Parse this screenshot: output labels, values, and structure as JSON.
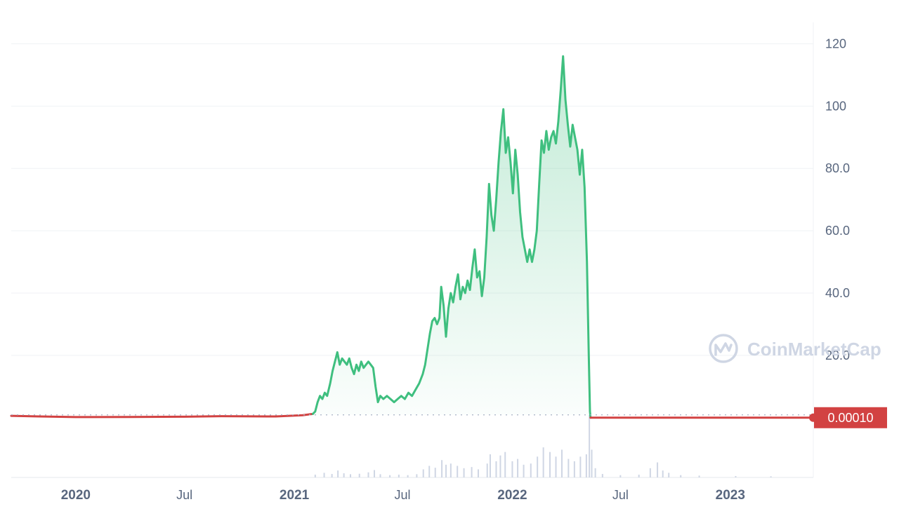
{
  "chart_data": {
    "type": "area",
    "y_ticks": [
      "20.0",
      "40.0",
      "60.0",
      "80.0",
      "100",
      "120"
    ],
    "ylim": [
      -5,
      130
    ],
    "x_ticks": [
      {
        "date": "2020-01-01",
        "label": "2020",
        "major": true
      },
      {
        "date": "2020-07-01",
        "label": "Jul",
        "major": false
      },
      {
        "date": "2021-01-01",
        "label": "2021",
        "major": true
      },
      {
        "date": "2021-07-01",
        "label": "Jul",
        "major": false
      },
      {
        "date": "2022-01-01",
        "label": "2022",
        "major": true
      },
      {
        "date": "2022-07-01",
        "label": "Jul",
        "major": false
      },
      {
        "date": "2023-01-01",
        "label": "2023",
        "major": true
      }
    ],
    "xlim": [
      "2019-09-15",
      "2023-05-20"
    ],
    "reference_price": 0.0001,
    "current_price_label": "0.00010",
    "colors": {
      "up": "#3fbf7f",
      "down": "#d24242",
      "fill_top": "#3fbf7f",
      "grid": "#eff2f5",
      "volume": "#cfd6e4"
    },
    "series": [
      {
        "direction": "down",
        "points": [
          [
            "2019-09-15",
            0.6
          ],
          [
            "2019-11-01",
            0.4
          ],
          [
            "2020-01-01",
            0.2
          ],
          [
            "2020-04-01",
            0.25
          ],
          [
            "2020-07-01",
            0.3
          ],
          [
            "2020-09-01",
            0.5
          ],
          [
            "2020-12-01",
            0.4
          ],
          [
            "2021-01-15",
            0.8
          ],
          [
            "2021-02-01",
            1.2
          ]
        ]
      },
      {
        "direction": "up",
        "points": [
          [
            "2021-02-01",
            1.2
          ],
          [
            "2021-02-05",
            2
          ],
          [
            "2021-02-09",
            5
          ],
          [
            "2021-02-13",
            7
          ],
          [
            "2021-02-17",
            6
          ],
          [
            "2021-02-21",
            8
          ],
          [
            "2021-02-25",
            7
          ],
          [
            "2021-03-02",
            11
          ],
          [
            "2021-03-06",
            15
          ],
          [
            "2021-03-10",
            18
          ],
          [
            "2021-03-14",
            21
          ],
          [
            "2021-03-18",
            17
          ],
          [
            "2021-03-22",
            19
          ],
          [
            "2021-03-26",
            18
          ],
          [
            "2021-03-30",
            17
          ],
          [
            "2021-04-03",
            19
          ],
          [
            "2021-04-07",
            16
          ],
          [
            "2021-04-11",
            14
          ],
          [
            "2021-04-15",
            17
          ],
          [
            "2021-04-19",
            15
          ],
          [
            "2021-04-23",
            18
          ],
          [
            "2021-04-27",
            16
          ],
          [
            "2021-05-01",
            17
          ],
          [
            "2021-05-05",
            18
          ],
          [
            "2021-05-09",
            17
          ],
          [
            "2021-05-13",
            16
          ],
          [
            "2021-05-17",
            10
          ],
          [
            "2021-05-21",
            5
          ],
          [
            "2021-05-25",
            7
          ],
          [
            "2021-05-30",
            6
          ],
          [
            "2021-06-05",
            7
          ],
          [
            "2021-06-11",
            6
          ],
          [
            "2021-06-17",
            5
          ],
          [
            "2021-06-23",
            6
          ],
          [
            "2021-06-29",
            7
          ],
          [
            "2021-07-05",
            6
          ],
          [
            "2021-07-11",
            8
          ],
          [
            "2021-07-17",
            7
          ],
          [
            "2021-07-23",
            9
          ],
          [
            "2021-07-29",
            11
          ],
          [
            "2021-08-04",
            14
          ],
          [
            "2021-08-08",
            17
          ],
          [
            "2021-08-12",
            22
          ],
          [
            "2021-08-16",
            27
          ],
          [
            "2021-08-20",
            31
          ],
          [
            "2021-08-24",
            32
          ],
          [
            "2021-08-28",
            30
          ],
          [
            "2021-09-01",
            32
          ],
          [
            "2021-09-04",
            42
          ],
          [
            "2021-09-08",
            36
          ],
          [
            "2021-09-12",
            26
          ],
          [
            "2021-09-16",
            35
          ],
          [
            "2021-09-20",
            40
          ],
          [
            "2021-09-24",
            37
          ],
          [
            "2021-09-28",
            42
          ],
          [
            "2021-10-02",
            46
          ],
          [
            "2021-10-06",
            38
          ],
          [
            "2021-10-10",
            42
          ],
          [
            "2021-10-14",
            40
          ],
          [
            "2021-10-18",
            44
          ],
          [
            "2021-10-22",
            41
          ],
          [
            "2021-10-26",
            48
          ],
          [
            "2021-10-30",
            54
          ],
          [
            "2021-11-03",
            45
          ],
          [
            "2021-11-07",
            47
          ],
          [
            "2021-11-11",
            39
          ],
          [
            "2021-11-15",
            45
          ],
          [
            "2021-11-19",
            58
          ],
          [
            "2021-11-23",
            75
          ],
          [
            "2021-11-27",
            65
          ],
          [
            "2021-12-01",
            60
          ],
          [
            "2021-12-05",
            70
          ],
          [
            "2021-12-09",
            82
          ],
          [
            "2021-12-13",
            92
          ],
          [
            "2021-12-17",
            99
          ],
          [
            "2021-12-21",
            85
          ],
          [
            "2021-12-25",
            90
          ],
          [
            "2021-12-29",
            82
          ],
          [
            "2022-01-02",
            72
          ],
          [
            "2022-01-06",
            86
          ],
          [
            "2022-01-10",
            78
          ],
          [
            "2022-01-14",
            66
          ],
          [
            "2022-01-18",
            58
          ],
          [
            "2022-01-22",
            54
          ],
          [
            "2022-01-26",
            50
          ],
          [
            "2022-01-30",
            54
          ],
          [
            "2022-02-03",
            50
          ],
          [
            "2022-02-07",
            54
          ],
          [
            "2022-02-11",
            60
          ],
          [
            "2022-02-15",
            75
          ],
          [
            "2022-02-19",
            89
          ],
          [
            "2022-02-23",
            85
          ],
          [
            "2022-02-27",
            92
          ],
          [
            "2022-03-03",
            86
          ],
          [
            "2022-03-07",
            90
          ],
          [
            "2022-03-11",
            92
          ],
          [
            "2022-03-15",
            88
          ],
          [
            "2022-03-19",
            95
          ],
          [
            "2022-03-23",
            105
          ],
          [
            "2022-03-27",
            116
          ],
          [
            "2022-03-31",
            102
          ],
          [
            "2022-04-04",
            94
          ],
          [
            "2022-04-08",
            87
          ],
          [
            "2022-04-12",
            94
          ],
          [
            "2022-04-16",
            90
          ],
          [
            "2022-04-20",
            86
          ],
          [
            "2022-04-24",
            78
          ],
          [
            "2022-04-28",
            86
          ],
          [
            "2022-05-02",
            74
          ],
          [
            "2022-05-06",
            50
          ],
          [
            "2022-05-09",
            20
          ],
          [
            "2022-05-11",
            2
          ],
          [
            "2022-05-12",
            0.0001
          ]
        ]
      },
      {
        "direction": "down",
        "points": [
          [
            "2022-05-12",
            0.0001
          ],
          [
            "2023-05-20",
            0.0001
          ]
        ]
      }
    ],
    "volume": [
      [
        "2021-02-05",
        1.2
      ],
      [
        "2021-02-20",
        2.0
      ],
      [
        "2021-03-05",
        1.5
      ],
      [
        "2021-03-15",
        3.0
      ],
      [
        "2021-03-25",
        1.8
      ],
      [
        "2021-04-05",
        1.4
      ],
      [
        "2021-04-20",
        1.6
      ],
      [
        "2021-05-05",
        2.2
      ],
      [
        "2021-05-15",
        3.2
      ],
      [
        "2021-05-25",
        1.4
      ],
      [
        "2021-06-10",
        1.0
      ],
      [
        "2021-06-25",
        1.2
      ],
      [
        "2021-07-10",
        1.0
      ],
      [
        "2021-07-25",
        1.4
      ],
      [
        "2021-08-05",
        3.5
      ],
      [
        "2021-08-15",
        5.0
      ],
      [
        "2021-08-25",
        4.2
      ],
      [
        "2021-09-05",
        7.5
      ],
      [
        "2021-09-12",
        5.5
      ],
      [
        "2021-09-20",
        6.0
      ],
      [
        "2021-10-01",
        5.0
      ],
      [
        "2021-10-12",
        4.0
      ],
      [
        "2021-10-25",
        4.5
      ],
      [
        "2021-11-05",
        3.5
      ],
      [
        "2021-11-20",
        6.0
      ],
      [
        "2021-11-25",
        10.0
      ],
      [
        "2021-12-05",
        7.0
      ],
      [
        "2021-12-12",
        9.5
      ],
      [
        "2021-12-20",
        11.0
      ],
      [
        "2022-01-01",
        7.0
      ],
      [
        "2022-01-10",
        8.0
      ],
      [
        "2022-01-20",
        5.5
      ],
      [
        "2022-02-01",
        6.0
      ],
      [
        "2022-02-12",
        9.0
      ],
      [
        "2022-02-22",
        13.0
      ],
      [
        "2022-03-05",
        11.0
      ],
      [
        "2022-03-15",
        9.0
      ],
      [
        "2022-03-25",
        12.0
      ],
      [
        "2022-04-05",
        8.0
      ],
      [
        "2022-04-15",
        7.0
      ],
      [
        "2022-04-25",
        9.0
      ],
      [
        "2022-05-05",
        10.0
      ],
      [
        "2022-05-10",
        27.0
      ],
      [
        "2022-05-14",
        12.0
      ],
      [
        "2022-05-20",
        4.0
      ],
      [
        "2022-06-01",
        1.5
      ],
      [
        "2022-07-01",
        1.0
      ],
      [
        "2022-08-01",
        1.2
      ],
      [
        "2022-08-20",
        4.0
      ],
      [
        "2022-09-01",
        6.5
      ],
      [
        "2022-09-10",
        3.0
      ],
      [
        "2022-09-20",
        2.0
      ],
      [
        "2022-10-10",
        1.0
      ],
      [
        "2022-11-10",
        0.8
      ],
      [
        "2023-01-10",
        0.6
      ],
      [
        "2023-03-10",
        0.5
      ]
    ],
    "volume_max": 30
  },
  "watermark": {
    "text": "CoinMarketCap",
    "icon": "coinmarketcap-logo-icon"
  }
}
